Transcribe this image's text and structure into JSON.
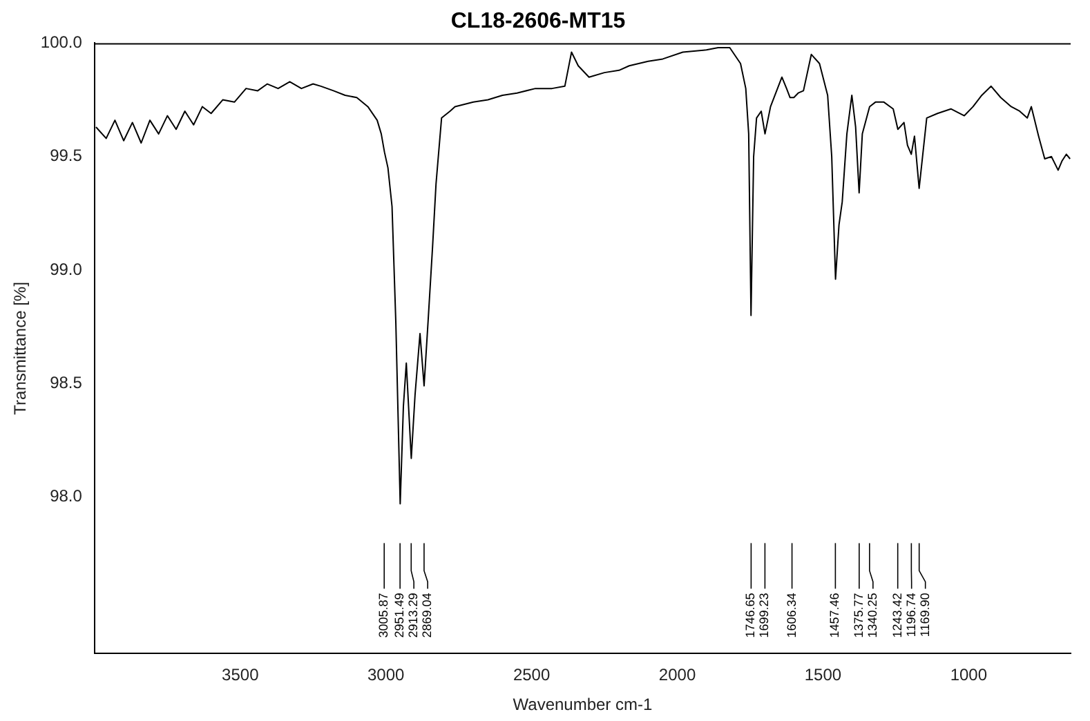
{
  "chart_data": {
    "type": "line",
    "title": "CL18-2606-MT15",
    "xlabel": "Wavenumber cm-1",
    "ylabel": "Transmittance [%]",
    "xlim": [
      4000,
      650
    ],
    "xticks": [
      3500,
      3000,
      2500,
      2000,
      1500,
      1000
    ],
    "ylim": [
      97.31,
      100.0
    ],
    "yticks": [
      {
        "value": 98,
        "label": "98.0"
      },
      {
        "value": 98.5,
        "label": "98.5"
      },
      {
        "value": 99,
        "label": "99.0"
      },
      {
        "value": 99.5,
        "label": "99.5"
      },
      {
        "value": 100,
        "label": "100.0"
      }
    ],
    "grid": false,
    "legend": false,
    "marker": "none",
    "line_style": "solid",
    "series": [
      {
        "color": "#000000",
        "x": [
          3995,
          3960,
          3930,
          3900,
          3870,
          3840,
          3810,
          3780,
          3750,
          3720,
          3690,
          3660,
          3630,
          3600,
          3560,
          3520,
          3480,
          3440,
          3407,
          3370,
          3330,
          3290,
          3250,
          3223,
          3180,
          3140,
          3100,
          3062,
          3030,
          3016,
          3005,
          2993,
          2979,
          2966,
          2951,
          2940,
          2930,
          2913,
          2900,
          2883,
          2869,
          2855,
          2840,
          2828,
          2809,
          2780,
          2763,
          2700,
          2650,
          2600,
          2550,
          2487,
          2430,
          2386,
          2363,
          2340,
          2303,
          2250,
          2200,
          2165,
          2100,
          2050,
          1981,
          1900,
          1860,
          1820,
          1783,
          1765,
          1755,
          1747,
          1738,
          1728,
          1712,
          1699,
          1680,
          1659,
          1641,
          1625,
          1613,
          1600,
          1585,
          1567,
          1540,
          1512,
          1484,
          1470,
          1457,
          1445,
          1434,
          1418,
          1401,
          1388,
          1376,
          1365,
          1340,
          1320,
          1291,
          1259,
          1243,
          1222,
          1210,
          1197,
          1186,
          1170,
          1144,
          1107,
          1061,
          1015,
          985,
          955,
          923,
          890,
          854,
          825,
          799,
          785,
          760,
          739,
          716,
          693,
          680,
          665,
          652
        ],
        "values": [
          99.63,
          99.58,
          99.66,
          99.57,
          99.65,
          99.56,
          99.66,
          99.6,
          99.68,
          99.62,
          99.7,
          99.64,
          99.72,
          99.69,
          99.75,
          99.74,
          99.8,
          99.79,
          99.82,
          99.8,
          99.83,
          99.8,
          99.82,
          99.81,
          99.79,
          99.77,
          99.76,
          99.72,
          99.66,
          99.6,
          99.52,
          99.45,
          99.28,
          98.77,
          97.97,
          98.4,
          98.59,
          98.17,
          98.45,
          98.72,
          98.49,
          98.78,
          99.1,
          99.38,
          99.67,
          99.7,
          99.72,
          99.74,
          99.75,
          99.77,
          99.78,
          99.8,
          99.8,
          99.81,
          99.96,
          99.9,
          99.85,
          99.87,
          99.88,
          99.9,
          99.92,
          99.93,
          99.96,
          99.97,
          99.98,
          99.98,
          99.91,
          99.8,
          99.6,
          98.8,
          99.5,
          99.67,
          99.7,
          99.6,
          99.72,
          99.79,
          99.85,
          99.8,
          99.76,
          99.76,
          99.78,
          99.79,
          99.95,
          99.91,
          99.77,
          99.5,
          98.96,
          99.2,
          99.3,
          99.6,
          99.77,
          99.63,
          99.34,
          99.6,
          99.72,
          99.74,
          99.74,
          99.71,
          99.62,
          99.65,
          99.55,
          99.51,
          99.59,
          99.36,
          99.67,
          99.69,
          99.71,
          99.68,
          99.72,
          99.77,
          99.81,
          99.76,
          99.72,
          99.7,
          99.67,
          99.72,
          99.59,
          99.49,
          99.5,
          99.44,
          99.48,
          99.51,
          99.49
        ]
      }
    ],
    "annotations": [
      {
        "text": "3005.87",
        "x": 3005.87
      },
      {
        "text": "2951.49",
        "x": 2951.49
      },
      {
        "text": "2913.29",
        "x": 2913.29
      },
      {
        "text": "2869.04",
        "x": 2869.04
      },
      {
        "text": "1746.65",
        "x": 1746.65
      },
      {
        "text": "1699.23",
        "x": 1699.23
      },
      {
        "text": "1606.34",
        "x": 1606.34
      },
      {
        "text": "1457.46",
        "x": 1457.46
      },
      {
        "text": "1375.77",
        "x": 1375.77
      },
      {
        "text": "1340.25",
        "x": 1340.25
      },
      {
        "text": "1243.42",
        "x": 1243.42
      },
      {
        "text": "1196.74",
        "x": 1196.74
      },
      {
        "text": "1169.90",
        "x": 1169.9
      }
    ]
  }
}
